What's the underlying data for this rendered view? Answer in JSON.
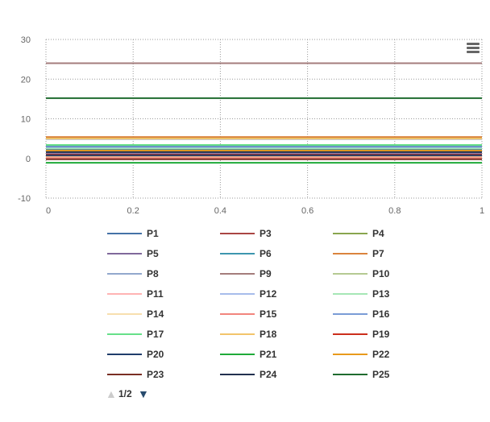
{
  "chart_data": {
    "type": "line",
    "title": "",
    "xlabel": "",
    "ylabel": "",
    "xlim": [
      0,
      1
    ],
    "ylim": [
      -10,
      30
    ],
    "x_ticks": [
      "0",
      "0.2",
      "0.4",
      "0.6",
      "0.8",
      "1"
    ],
    "x_tick_values": [
      0,
      0.2,
      0.4,
      0.6,
      0.8,
      1
    ],
    "y_ticks": [
      "-10",
      "0",
      "10",
      "20",
      "30"
    ],
    "y_tick_values": [
      -10,
      0,
      10,
      20,
      30
    ],
    "grid": "dotted, both axes",
    "legend_position": "bottom",
    "x": [
      0,
      1
    ],
    "series": [
      {
        "name": "P1",
        "color": "#4572A7",
        "values": [
          3.0,
          3.0
        ]
      },
      {
        "name": "P3",
        "color": "#AA4643",
        "values": [
          0.6,
          0.6
        ]
      },
      {
        "name": "P4",
        "color": "#89A54E",
        "values": [
          5.2,
          5.2
        ]
      },
      {
        "name": "P5",
        "color": "#80699B",
        "values": [
          1.2,
          1.2
        ]
      },
      {
        "name": "P6",
        "color": "#3D96AE",
        "values": [
          2.2,
          2.2
        ]
      },
      {
        "name": "P7",
        "color": "#DB843D",
        "values": [
          5.4,
          5.4
        ]
      },
      {
        "name": "P8",
        "color": "#92A8CD",
        "values": [
          4.9,
          4.9
        ]
      },
      {
        "name": "P9",
        "color": "#A47D7C",
        "values": [
          24.0,
          24.0
        ]
      },
      {
        "name": "P10",
        "color": "#B5CA92",
        "values": [
          1.8,
          1.8
        ]
      },
      {
        "name": "P11",
        "color": "#FFB3B3",
        "values": [
          0.9,
          0.9
        ]
      },
      {
        "name": "P12",
        "color": "#A7BCEB",
        "values": [
          1.5,
          1.5
        ]
      },
      {
        "name": "P13",
        "color": "#A6E7B6",
        "values": [
          2.6,
          2.6
        ]
      },
      {
        "name": "P14",
        "color": "#F7DFAE",
        "values": [
          0.3,
          0.3
        ]
      },
      {
        "name": "P15",
        "color": "#F2857D",
        "values": [
          0.1,
          0.1
        ]
      },
      {
        "name": "P16",
        "color": "#7A9CD6",
        "values": [
          2.9,
          2.9
        ]
      },
      {
        "name": "P17",
        "color": "#66E089",
        "values": [
          3.4,
          3.4
        ]
      },
      {
        "name": "P18",
        "color": "#F2C46B",
        "values": [
          5.0,
          5.0
        ]
      },
      {
        "name": "P19",
        "color": "#CC2E1C",
        "values": [
          1.0,
          1.0
        ]
      },
      {
        "name": "P20",
        "color": "#1F3D6B",
        "values": [
          0.8,
          0.8
        ]
      },
      {
        "name": "P21",
        "color": "#1FAA39",
        "values": [
          -1.1,
          -1.1
        ]
      },
      {
        "name": "P22",
        "color": "#E89A1C",
        "values": [
          2.0,
          2.0
        ]
      },
      {
        "name": "P23",
        "color": "#7A2F24",
        "values": [
          -0.2,
          -0.2
        ]
      },
      {
        "name": "P24",
        "color": "#22304F",
        "values": [
          1.6,
          1.6
        ]
      },
      {
        "name": "P25",
        "color": "#1F6B2F",
        "values": [
          15.2,
          15.2
        ]
      }
    ]
  },
  "legend": {
    "page_indicator": "1/2",
    "up_arrow": "▲",
    "down_arrow": "▼",
    "arrow_active_color": "#274b6d",
    "arrow_inactive_color": "#cccccc"
  },
  "menu": {
    "icon": "hamburger-menu-icon",
    "color": "#666666"
  }
}
